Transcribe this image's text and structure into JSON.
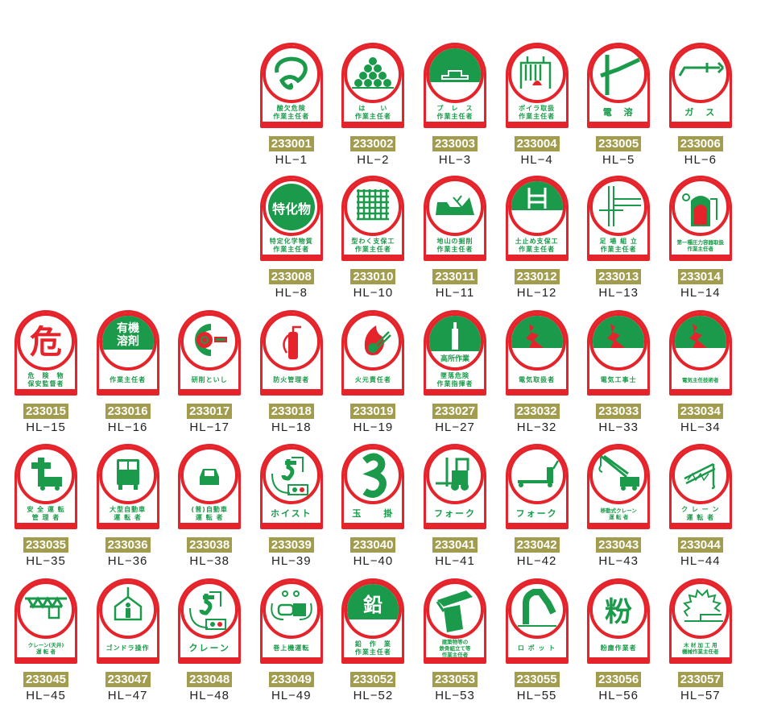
{
  "colors": {
    "red": "#e5232b",
    "green": "#1a9a4a",
    "code_bg": "#a29c4e"
  },
  "rows": [
    {
      "start_col": 3,
      "items": [
        {
          "code": "233001",
          "model": "HL−1",
          "label": [
            "酸欠危険",
            "作業主任者"
          ],
          "icon": "oxygen-hose"
        },
        {
          "code": "233002",
          "model": "HL−2",
          "label": [
            "は　　い",
            "作業主任者"
          ],
          "icon": "pile-stack"
        },
        {
          "code": "233003",
          "model": "HL−3",
          "label": [
            "プ　レ　ス",
            "作業主任者"
          ],
          "icon": "press"
        },
        {
          "code": "233004",
          "model": "HL−4",
          "label": [
            "ボイラ取扱",
            "作業主任者"
          ],
          "icon": "boiler"
        },
        {
          "code": "233005",
          "model": "HL−5",
          "label": [
            "電　溶"
          ],
          "icon": "electric-welding",
          "big": true
        },
        {
          "code": "233006",
          "model": "HL−6",
          "label": [
            "ガ　ス"
          ],
          "icon": "gas-torch",
          "big": true
        }
      ]
    },
    {
      "start_col": 3,
      "items": [
        {
          "code": "233008",
          "model": "HL−8",
          "label": [
            "特定化学物質",
            "作業主任者"
          ],
          "icon": "chem-text",
          "icon_text": "特化物"
        },
        {
          "code": "233010",
          "model": "HL−10",
          "label": [
            "型わく支保工",
            "作業主任者"
          ],
          "icon": "formwork-grid"
        },
        {
          "code": "233011",
          "model": "HL−11",
          "label": [
            "地山の掘削",
            "作業主任者"
          ],
          "icon": "excavation"
        },
        {
          "code": "233012",
          "model": "HL−12",
          "label": [
            "土止め支保工",
            "作業主任者"
          ],
          "icon": "earth-retaining"
        },
        {
          "code": "233013",
          "model": "HL−13",
          "label": [
            "足 場 組 立",
            "作業主任者"
          ],
          "icon": "scaffold"
        },
        {
          "code": "233014",
          "model": "HL−14",
          "label": [
            "第一種圧力容器取扱",
            "作業主任者"
          ],
          "icon": "pressure-vessel",
          "small": true
        }
      ]
    },
    {
      "start_col": 0,
      "items": [
        {
          "code": "233015",
          "model": "HL−15",
          "label": [
            "危　険　物",
            "保安監督者"
          ],
          "icon": "danger-text",
          "icon_text": "危"
        },
        {
          "code": "233016",
          "model": "HL−16",
          "label": [
            "作業主任者"
          ],
          "icon": "organic-text",
          "icon_text": [
            "有機",
            "溶剤"
          ]
        },
        {
          "code": "233017",
          "model": "HL−17",
          "label": [
            "研削といし"
          ],
          "icon": "grinder"
        },
        {
          "code": "233018",
          "model": "HL−18",
          "label": [
            "防火管理者"
          ],
          "icon": "extinguisher"
        },
        {
          "code": "233019",
          "model": "HL−19",
          "label": [
            "火元責任者"
          ],
          "icon": "fire"
        },
        {
          "code": "233027",
          "model": "HL−27",
          "label": [
            "墜落危険",
            "作業指揮者"
          ],
          "icon": "height-work",
          "icon_text": "高所作業"
        },
        {
          "code": "233032",
          "model": "HL−32",
          "label": [
            "電気取扱者"
          ],
          "icon": "electric-bolt"
        },
        {
          "code": "233033",
          "model": "HL−33",
          "label": [
            "電気工事士"
          ],
          "icon": "electric-bolt"
        },
        {
          "code": "233034",
          "model": "HL−34",
          "label": [
            "電気主任技術者"
          ],
          "icon": "electric-bolt",
          "small": true
        }
      ]
    },
    {
      "start_col": 0,
      "items": [
        {
          "code": "233035",
          "model": "HL−35",
          "label": [
            "安 全 運 転",
            "管 理 者"
          ],
          "icon": "safety-truck"
        },
        {
          "code": "233036",
          "model": "HL−36",
          "label": [
            "大型自動車",
            "運 転 者"
          ],
          "icon": "large-truck"
        },
        {
          "code": "233038",
          "model": "HL−38",
          "label": [
            "(普)自動車",
            "運 転 者"
          ],
          "icon": "car"
        },
        {
          "code": "233039",
          "model": "HL−39",
          "label": [
            "ホイスト"
          ],
          "icon": "hoist",
          "big": true
        },
        {
          "code": "233040",
          "model": "HL−40",
          "label": [
            "玉　　掛"
          ],
          "icon": "sling-hook",
          "big": true
        },
        {
          "code": "233041",
          "model": "HL−41",
          "label": [
            "フォーク"
          ],
          "icon": "forklift",
          "big": true
        },
        {
          "code": "233042",
          "model": "HL−42",
          "label": [
            "フォーク"
          ],
          "icon": "pallet-fork",
          "big": true
        },
        {
          "code": "233043",
          "model": "HL−43",
          "label": [
            "移動式クレーン",
            "運 転 者"
          ],
          "icon": "mobile-crane",
          "small": true
        },
        {
          "code": "233044",
          "model": "HL−44",
          "label": [
            "ク レ ー ン",
            "運 転 者"
          ],
          "icon": "crane"
        }
      ]
    },
    {
      "start_col": 0,
      "items": [
        {
          "code": "233045",
          "model": "HL−45",
          "label": [
            "クレーン(天井)",
            "運 転 者"
          ],
          "icon": "overhead-crane",
          "small": true
        },
        {
          "code": "233047",
          "model": "HL−47",
          "label": [
            "ゴンドラ操作"
          ],
          "icon": "gondola"
        },
        {
          "code": "233048",
          "model": "HL−48",
          "label": [
            "クレーン"
          ],
          "icon": "hoist",
          "big": true
        },
        {
          "code": "233049",
          "model": "HL−49",
          "label": [
            "巻上機運転"
          ],
          "icon": "winch"
        },
        {
          "code": "233052",
          "model": "HL−52",
          "label": [
            "鉛　作　業",
            "作業主任者"
          ],
          "icon": "lead-text",
          "icon_text": "鉛"
        },
        {
          "code": "233053",
          "model": "HL−53",
          "label": [
            "建築物等の",
            "鉄骨組立て等",
            "作業主任者"
          ],
          "icon": "steel-frame",
          "small": true
        },
        {
          "code": "233055",
          "model": "HL−55",
          "label": [
            "ロ ボ ッ ト"
          ],
          "icon": "robot"
        },
        {
          "code": "233056",
          "model": "HL−56",
          "label": [
            "粉塵作業者"
          ],
          "icon": "powder-text",
          "icon_text": "粉"
        },
        {
          "code": "233057",
          "model": "HL−57",
          "label": [
            "木 材 加 工 用",
            "機械作業主任者"
          ],
          "icon": "saw-blade",
          "small": true
        }
      ]
    }
  ]
}
